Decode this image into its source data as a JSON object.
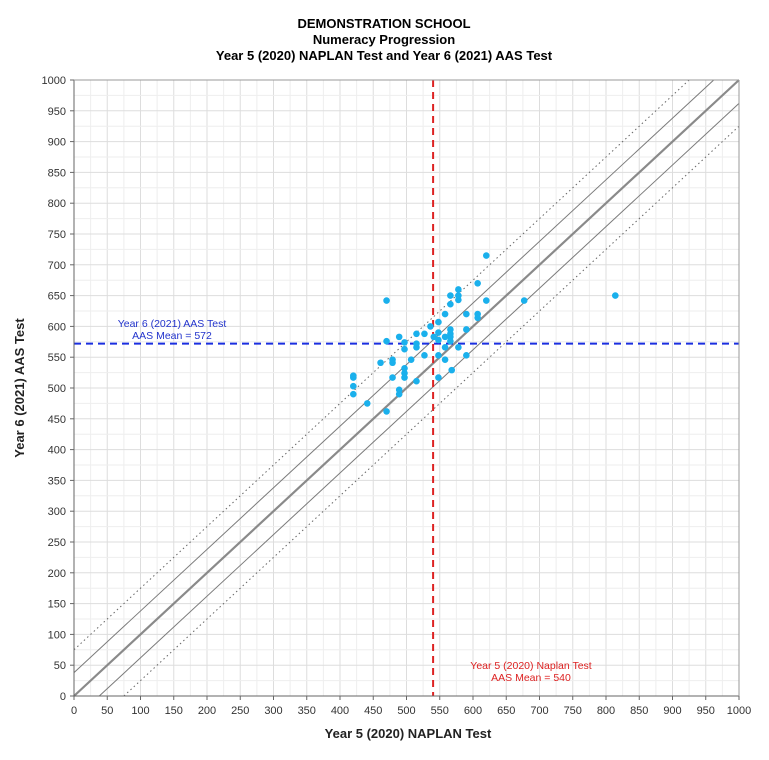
{
  "chart_data": {
    "type": "scatter",
    "title": [
      "DEMONSTRATION SCHOOL",
      "Numeracy Progression",
      "Year 5 (2020) NAPLAN Test and Year 6 (2021) AAS Test"
    ],
    "xlabel": "Year 5 (2020) NAPLAN Test",
    "ylabel": "Year 6 (2021) AAS Test",
    "xlim": [
      0,
      1000
    ],
    "ylim": [
      0,
      1000
    ],
    "x_ticks": [
      0,
      50,
      100,
      150,
      200,
      250,
      300,
      350,
      400,
      450,
      500,
      550,
      600,
      650,
      700,
      750,
      800,
      850,
      900,
      950,
      1000
    ],
    "y_ticks": [
      0,
      50,
      100,
      150,
      200,
      250,
      300,
      350,
      400,
      450,
      500,
      550,
      600,
      650,
      700,
      750,
      800,
      850,
      900,
      950,
      1000
    ],
    "grid": true,
    "point_color": "#1ab0ec",
    "reference_lines": [
      {
        "kind": "diagonal",
        "offset": 0,
        "style": "solid-thick",
        "color": "#888888"
      },
      {
        "kind": "diagonal",
        "offset": 38,
        "style": "solid-thin",
        "color": "#888888"
      },
      {
        "kind": "diagonal",
        "offset": -38,
        "style": "solid-thin",
        "color": "#888888"
      },
      {
        "kind": "diagonal",
        "offset": 75,
        "style": "dotted",
        "color": "#888888"
      },
      {
        "kind": "diagonal",
        "offset": -75,
        "style": "dotted",
        "color": "#888888"
      }
    ],
    "means": {
      "y": {
        "value": 572,
        "label_line1": "Year 6 (2021) AAS Test",
        "label_line2": "AAS Mean = 572",
        "color": "#1a2ee0"
      },
      "x": {
        "value": 540,
        "label_line1": "Year 5 (2020) Naplan Test",
        "label_line2": "AAS Mean = 540",
        "color": "#dd2222"
      }
    },
    "points": [
      {
        "x": 420,
        "y": 520
      },
      {
        "x": 420,
        "y": 517
      },
      {
        "x": 420,
        "y": 503
      },
      {
        "x": 420,
        "y": 490
      },
      {
        "x": 441,
        "y": 475
      },
      {
        "x": 461,
        "y": 541
      },
      {
        "x": 470,
        "y": 642
      },
      {
        "x": 470,
        "y": 462
      },
      {
        "x": 470,
        "y": 576
      },
      {
        "x": 479,
        "y": 546
      },
      {
        "x": 479,
        "y": 541
      },
      {
        "x": 479,
        "y": 517
      },
      {
        "x": 489,
        "y": 583
      },
      {
        "x": 489,
        "y": 497
      },
      {
        "x": 489,
        "y": 490
      },
      {
        "x": 497,
        "y": 574
      },
      {
        "x": 497,
        "y": 563
      },
      {
        "x": 497,
        "y": 532
      },
      {
        "x": 497,
        "y": 524
      },
      {
        "x": 497,
        "y": 517
      },
      {
        "x": 507,
        "y": 546
      },
      {
        "x": 515,
        "y": 588
      },
      {
        "x": 515,
        "y": 572
      },
      {
        "x": 515,
        "y": 566
      },
      {
        "x": 515,
        "y": 511
      },
      {
        "x": 527,
        "y": 588
      },
      {
        "x": 527,
        "y": 553
      },
      {
        "x": 536,
        "y": 600
      },
      {
        "x": 541,
        "y": 583
      },
      {
        "x": 548,
        "y": 607
      },
      {
        "x": 548,
        "y": 590
      },
      {
        "x": 548,
        "y": 578
      },
      {
        "x": 548,
        "y": 553
      },
      {
        "x": 548,
        "y": 517
      },
      {
        "x": 558,
        "y": 620
      },
      {
        "x": 558,
        "y": 583
      },
      {
        "x": 558,
        "y": 566
      },
      {
        "x": 558,
        "y": 546
      },
      {
        "x": 566,
        "y": 650
      },
      {
        "x": 566,
        "y": 636
      },
      {
        "x": 566,
        "y": 595
      },
      {
        "x": 566,
        "y": 588
      },
      {
        "x": 566,
        "y": 583
      },
      {
        "x": 566,
        "y": 576
      },
      {
        "x": 568,
        "y": 529
      },
      {
        "x": 578,
        "y": 660
      },
      {
        "x": 578,
        "y": 650
      },
      {
        "x": 578,
        "y": 643
      },
      {
        "x": 578,
        "y": 566
      },
      {
        "x": 590,
        "y": 620
      },
      {
        "x": 590,
        "y": 595
      },
      {
        "x": 590,
        "y": 553
      },
      {
        "x": 607,
        "y": 670
      },
      {
        "x": 607,
        "y": 620
      },
      {
        "x": 607,
        "y": 614
      },
      {
        "x": 620,
        "y": 715
      },
      {
        "x": 620,
        "y": 642
      },
      {
        "x": 677,
        "y": 642
      },
      {
        "x": 814,
        "y": 650
      }
    ]
  }
}
